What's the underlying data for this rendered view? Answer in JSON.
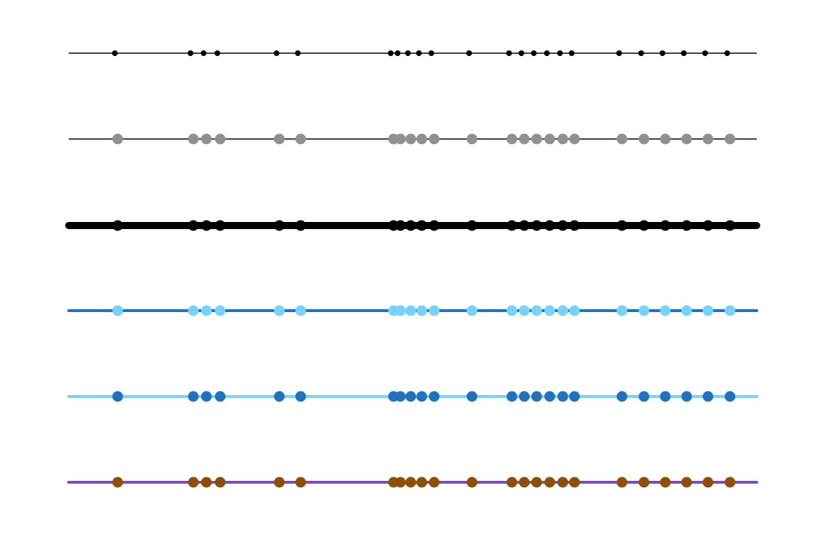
{
  "chart_data": {
    "type": "line",
    "title": "",
    "xlabel": "",
    "ylabel": "",
    "axes_visible": false,
    "grid": false,
    "xlim": [
      0,
      100
    ],
    "x": [
      6.7,
      17.7,
      19.6,
      21.6,
      30.2,
      33.3,
      46.8,
      47.8,
      49.3,
      50.9,
      52.7,
      58.2,
      64.0,
      65.8,
      67.6,
      69.5,
      71.4,
      73.1,
      80.0,
      83.2,
      86.3,
      89.4,
      92.5,
      95.7
    ],
    "series": [
      {
        "line_color": "#000000",
        "line_style": "thin",
        "marker_color": "#000000",
        "marker_size": "small"
      },
      {
        "line_color": "#000000",
        "line_style": "thin",
        "marker_color": "#909090",
        "marker_size": "large"
      },
      {
        "line_color": "#000000",
        "line_style": "very thick",
        "marker_color": "#000000",
        "marker_size": "large"
      },
      {
        "line_color": "#2271bd",
        "line_style": "medium",
        "marker_color": "#75d3ff",
        "marker_size": "large"
      },
      {
        "line_color": "#75d3ff",
        "line_style": "medium",
        "marker_color": "#2271bd",
        "marker_size": "large"
      },
      {
        "line_color": "#7c4bbb",
        "line_style": "medium",
        "marker_color": "#8c5000",
        "marker_size": "large"
      }
    ]
  }
}
